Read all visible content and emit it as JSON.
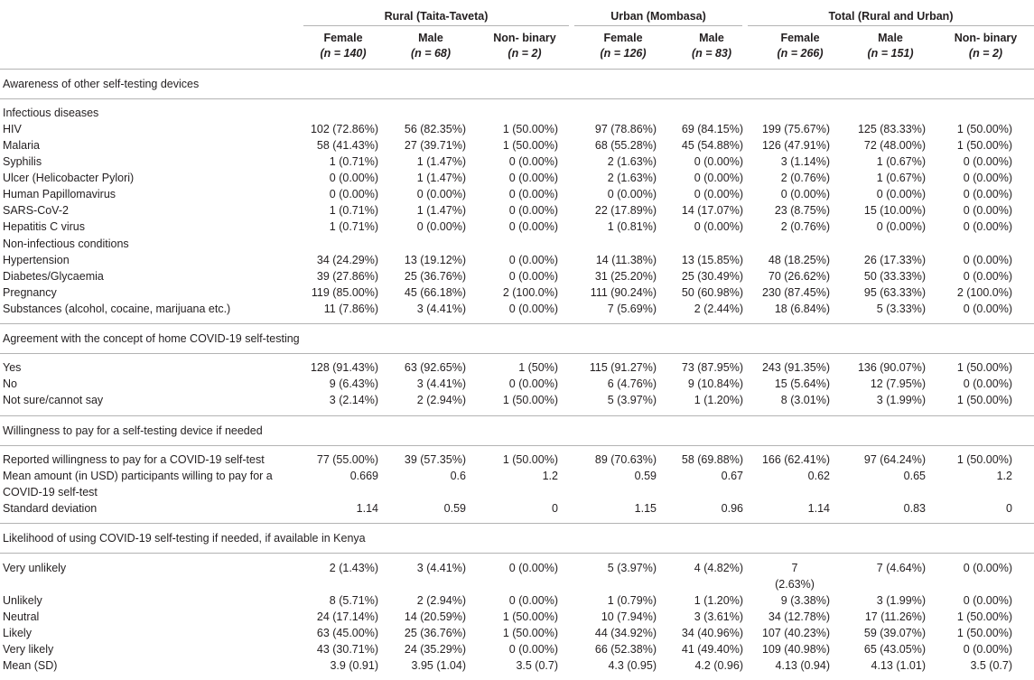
{
  "groups": [
    {
      "label": "Rural (Taita-Taveta)"
    },
    {
      "label": "Urban (Mombasa)"
    },
    {
      "label": "Total (Rural and Urban)"
    }
  ],
  "subheaders": [
    {
      "label": "Female",
      "n": "(n = 140)"
    },
    {
      "label": "Male",
      "n": "(n = 68)"
    },
    {
      "label": "Non- binary",
      "n": "(n = 2)"
    },
    {
      "label": "Female",
      "n": "(n = 126)"
    },
    {
      "label": "Male",
      "n": "(n = 83)"
    },
    {
      "label": "Female",
      "n": "(n = 266)"
    },
    {
      "label": "Male",
      "n": "(n = 151)"
    },
    {
      "label": "Non- binary",
      "n": "(n = 2)"
    }
  ],
  "sections": [
    {
      "title": "Awareness of other self-testing devices"
    },
    {
      "title": "Agreement with the concept of home COVID-19 self-testing"
    },
    {
      "title": "Willingness to pay for a self-testing device if needed"
    },
    {
      "title": "Likelihood of using COVID-19 self-testing if needed, if available in Kenya"
    }
  ],
  "rows": [
    {
      "label": "Infectious diseases",
      "cells": [
        "",
        "",
        "",
        "",
        "",
        "",
        "",
        ""
      ]
    },
    {
      "label": "HIV",
      "cells": [
        "102 (72.86%)",
        "56 (82.35%)",
        "1 (50.00%)",
        "97 (78.86%)",
        "69 (84.15%)",
        "199 (75.67%)",
        "125 (83.33%)",
        "1 (50.00%)"
      ]
    },
    {
      "label": "Malaria",
      "cells": [
        "58 (41.43%)",
        "27 (39.71%)",
        "1 (50.00%)",
        "68 (55.28%)",
        "45 (54.88%)",
        "126 (47.91%)",
        "72 (48.00%)",
        "1 (50.00%)"
      ]
    },
    {
      "label": "Syphilis",
      "cells": [
        "1 (0.71%)",
        "1 (1.47%)",
        "0 (0.00%)",
        "2 (1.63%)",
        "0 (0.00%)",
        "3 (1.14%)",
        "1 (0.67%)",
        "0 (0.00%)"
      ]
    },
    {
      "label": "Ulcer (Helicobacter Pylori)",
      "cells": [
        "0 (0.00%)",
        "1 (1.47%)",
        "0 (0.00%)",
        "2 (1.63%)",
        "0 (0.00%)",
        "2 (0.76%)",
        "1 (0.67%)",
        "0 (0.00%)"
      ]
    },
    {
      "label": "Human Papillomavirus",
      "cells": [
        "0 (0.00%)",
        "0 (0.00%)",
        "0 (0.00%)",
        "0 (0.00%)",
        "0 (0.00%)",
        "0 (0.00%)",
        "0 (0.00%)",
        "0 (0.00%)"
      ]
    },
    {
      "label": "SARS-CoV-2",
      "cells": [
        "1 (0.71%)",
        "1 (1.47%)",
        "0 (0.00%)",
        "22 (17.89%)",
        "14 (17.07%)",
        "23 (8.75%)",
        "15 (10.00%)",
        "0 (0.00%)"
      ]
    },
    {
      "label": "Hepatitis C virus",
      "cells": [
        "1 (0.71%)",
        "0 (0.00%)",
        "0 (0.00%)",
        "1 (0.81%)",
        "0 (0.00%)",
        "2 (0.76%)",
        "0 (0.00%)",
        "0 (0.00%)"
      ]
    },
    {
      "label": "Non-infectious conditions",
      "cells": [
        "",
        "",
        "",
        "",
        "",
        "",
        "",
        ""
      ]
    },
    {
      "label": "Hypertension",
      "cells": [
        "34 (24.29%)",
        "13 (19.12%)",
        "0 (0.00%)",
        "14 (11.38%)",
        "13 (15.85%)",
        "48 (18.25%)",
        "26 (17.33%)",
        "0 (0.00%)"
      ]
    },
    {
      "label": "Diabetes/Glycaemia",
      "cells": [
        "39 (27.86%)",
        "25 (36.76%)",
        "0 (0.00%)",
        "31 (25.20%)",
        "25 (30.49%)",
        "70 (26.62%)",
        "50 (33.33%)",
        "0 (0.00%)"
      ]
    },
    {
      "label": "Pregnancy",
      "cells": [
        "119 (85.00%)",
        "45 (66.18%)",
        "2 (100.0%)",
        "111 (90.24%)",
        "50 (60.98%)",
        "230 (87.45%)",
        "95 (63.33%)",
        "2 (100.0%)"
      ]
    },
    {
      "label": "Substances (alcohol, cocaine, marijuana etc.)",
      "cells": [
        "11 (7.86%)",
        "3 (4.41%)",
        "0 (0.00%)",
        "7 (5.69%)",
        "2 (2.44%)",
        "18 (6.84%)",
        "5 (3.33%)",
        "0 (0.00%)"
      ]
    },
    {
      "label": "Yes",
      "cells": [
        "128 (91.43%)",
        "63 (92.65%)",
        "1 (50%)",
        "115 (91.27%)",
        "73 (87.95%)",
        "243 (91.35%)",
        "136 (90.07%)",
        "1 (50.00%)"
      ]
    },
    {
      "label": "No",
      "cells": [
        "9 (6.43%)",
        "3 (4.41%)",
        "0 (0.00%)",
        "6 (4.76%)",
        "9 (10.84%)",
        "15 (5.64%)",
        "12 (7.95%)",
        "0 (0.00%)"
      ]
    },
    {
      "label": "Not sure/cannot say",
      "cells": [
        "3 (2.14%)",
        "2 (2.94%)",
        "1 (50.00%)",
        "5 (3.97%)",
        "1 (1.20%)",
        "8 (3.01%)",
        "3 (1.99%)",
        "1 (50.00%)"
      ]
    },
    {
      "label": "Reported willingness to pay for a COVID-19 self-test",
      "cells": [
        "77 (55.00%)",
        "39 (57.35%)",
        "1 (50.00%)",
        "89 (70.63%)",
        "58 (69.88%)",
        "166 (62.41%)",
        "97 (64.24%)",
        "1 (50.00%)"
      ]
    },
    {
      "label": "Mean amount (in USD) participants willing to pay for a",
      "cells": [
        "0.669",
        "0.6",
        "1.2",
        "0.59",
        "0.67",
        "0.62",
        "0.65",
        "1.2"
      ]
    },
    {
      "label": "COVID-19 self-test",
      "cells": [
        "",
        "",
        "",
        "",
        "",
        "",
        "",
        ""
      ]
    },
    {
      "label": "Standard deviation",
      "cells": [
        "1.14",
        "0.59",
        "0",
        "1.15",
        "0.96",
        "1.14",
        "0.83",
        "0"
      ]
    },
    {
      "label": "Very unlikely",
      "cells": [
        "2 (1.43%)",
        "3 (4.41%)",
        "0 (0.00%)",
        "5 (3.97%)",
        "4 (4.82%)",
        "7",
        "7 (4.64%)",
        "0 (0.00%)"
      ]
    },
    {
      "label": "",
      "cells": [
        "",
        "",
        "",
        "",
        "",
        "(2.63%)",
        "",
        ""
      ]
    },
    {
      "label": "Unlikely",
      "cells": [
        "8 (5.71%)",
        "2 (2.94%)",
        "0 (0.00%)",
        "1 (0.79%)",
        "1 (1.20%)",
        "9 (3.38%)",
        "3 (1.99%)",
        "0 (0.00%)"
      ]
    },
    {
      "label": "Neutral",
      "cells": [
        "24 (17.14%)",
        "14 (20.59%)",
        "1 (50.00%)",
        "10 (7.94%)",
        "3 (3.61%)",
        "34 (12.78%)",
        "17 (11.26%)",
        "1 (50.00%)"
      ]
    },
    {
      "label": "Likely",
      "cells": [
        "63 (45.00%)",
        "25 (36.76%)",
        "1 (50.00%)",
        "44 (34.92%)",
        "34 (40.96%)",
        "107 (40.23%)",
        "59 (39.07%)",
        "1 (50.00%)"
      ]
    },
    {
      "label": "Very likely",
      "cells": [
        "43 (30.71%)",
        "24 (35.29%)",
        "0 (0.00%)",
        "66 (52.38%)",
        "41 (49.40%)",
        "109 (40.98%)",
        "65 (43.05%)",
        "0 (0.00%)"
      ]
    },
    {
      "label": "Mean (SD)",
      "cells": [
        "3.9 (0.91)",
        "3.95 (1.04)",
        "3.5 (0.7)",
        "4.3 (0.95)",
        "4.2 (0.96)",
        "4.13 (0.94)",
        "4.13 (1.01)",
        "3.5 (0.7)"
      ]
    }
  ]
}
